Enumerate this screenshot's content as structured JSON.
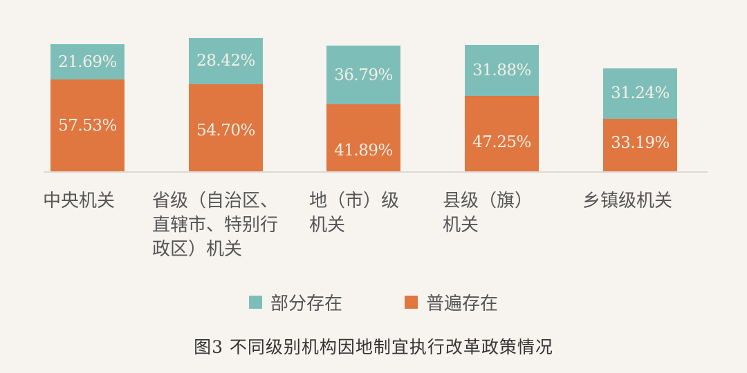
{
  "chart_data": {
    "type": "bar",
    "stacked": true,
    "title": "图3 不同级别机构因地制宜执行改革政策情况",
    "categories": [
      "中央机关",
      "省级（自治区、直辖市、特别行政区）机关",
      "地（市）级机关",
      "县级（旗）机关",
      "乡镇级机关"
    ],
    "series": [
      {
        "name": "普遍存在",
        "color": "#e07640",
        "values": [
          57.53,
          54.7,
          41.89,
          47.25,
          33.19
        ],
        "labels": [
          "57.53%",
          "54.70%",
          "41.89%",
          "47.25%",
          "33.19%"
        ]
      },
      {
        "name": "部分存在",
        "color": "#7dbfb8",
        "values": [
          21.69,
          28.42,
          36.79,
          31.88,
          31.24
        ],
        "labels": [
          "21.69%",
          "28.42%",
          "36.79%",
          "31.88%",
          "31.24%"
        ]
      }
    ],
    "xlabel": "",
    "ylabel": "",
    "grid": false,
    "legend_position": "bottom",
    "data_labels": true
  },
  "category_labels": [
    [
      "中央机关"
    ],
    [
      "省级（自治区、",
      "直辖市、特别行",
      "政区）机关"
    ],
    [
      "地（市）级",
      "机关"
    ],
    [
      "县级（旗）",
      "机关"
    ],
    [
      "乡镇级机关"
    ]
  ],
  "legend": [
    {
      "label": "部分存在",
      "color": "#7dbfb8"
    },
    {
      "label": "普遍存在",
      "color": "#e07640"
    }
  ],
  "caption": "图3  不同级别机构因地制宜执行改革政策情况"
}
